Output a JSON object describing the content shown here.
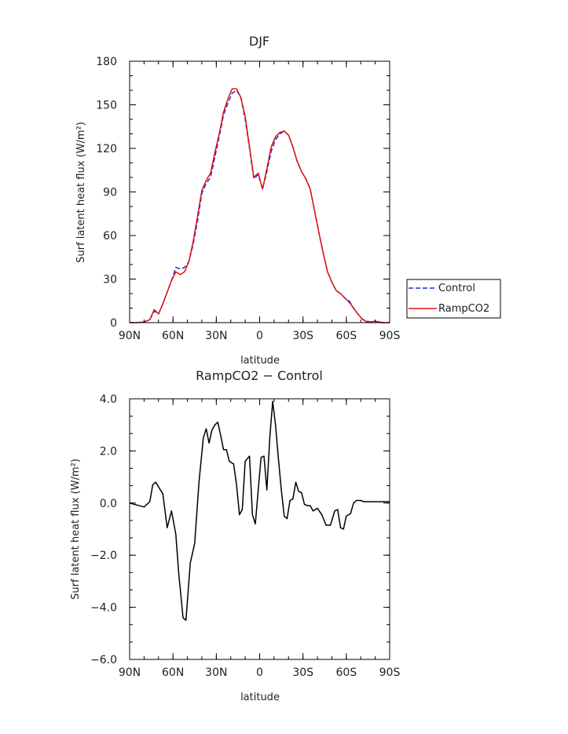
{
  "chart_data": [
    {
      "type": "line",
      "title": "DJF",
      "xlabel": "latitude",
      "ylabel": "Surf latent heat flux (W/m²)",
      "ylim": [
        0,
        180
      ],
      "xlim": [
        90,
        -90
      ],
      "yticks": [
        0,
        30,
        60,
        90,
        120,
        150,
        180
      ],
      "ytick_labels": [
        "0",
        "30",
        "60",
        "90",
        "120",
        "150",
        "180"
      ],
      "xticks": [
        90,
        60,
        30,
        0,
        -30,
        -60,
        -90
      ],
      "xtick_labels": [
        "90N",
        "60N",
        "30N",
        "0",
        "30S",
        "60S",
        "90S"
      ],
      "legend_position": "right",
      "series": [
        {
          "name": "Control",
          "color": "#1f2fd0",
          "dash": "dashed",
          "x": [
            90,
            85,
            80,
            76,
            73,
            70,
            67,
            64,
            61,
            58,
            55,
            52,
            49,
            46,
            43,
            40,
            37,
            34,
            31,
            28,
            25,
            22,
            19,
            16,
            13,
            10,
            7,
            4,
            1,
            -2,
            -5,
            -8,
            -11,
            -14,
            -17,
            -20,
            -23,
            -26,
            -29,
            -32,
            -35,
            -38,
            -41,
            -44,
            -47,
            -50,
            -53,
            -56,
            -59,
            -62,
            -65,
            -68,
            -71,
            -74,
            -77,
            -80,
            -83,
            -86,
            -90
          ],
          "values": [
            0,
            0,
            0.5,
            2,
            8,
            6,
            13,
            21,
            29,
            38,
            37,
            38,
            42,
            54,
            70,
            89,
            96,
            100,
            114,
            128,
            143,
            151,
            158,
            160,
            155,
            140,
            120,
            99,
            102,
            92,
            104,
            118,
            126,
            130,
            132,
            129,
            121,
            111,
            104,
            99,
            92,
            77,
            62,
            48,
            35,
            28,
            22,
            20,
            17,
            15,
            10,
            6,
            2.5,
            1,
            0.5,
            1,
            0,
            0,
            0
          ]
        },
        {
          "name": "RampCO2",
          "color": "#e01010",
          "dash": "solid",
          "x": [
            90,
            85,
            80,
            76,
            73,
            70,
            67,
            64,
            61,
            58,
            55,
            52,
            49,
            46,
            43,
            40,
            37,
            34,
            31,
            28,
            25,
            22,
            19,
            16,
            13,
            10,
            7,
            4,
            1,
            -2,
            -5,
            -8,
            -11,
            -14,
            -17,
            -20,
            -23,
            -26,
            -29,
            -32,
            -35,
            -38,
            -41,
            -44,
            -47,
            -50,
            -53,
            -56,
            -59,
            -62,
            -65,
            -68,
            -71,
            -74,
            -77,
            -80,
            -83,
            -86,
            -90
          ],
          "values": [
            0,
            0,
            0.5,
            2,
            9,
            6,
            13,
            21,
            29,
            35,
            33,
            35,
            42,
            56,
            73,
            91,
            98,
            103,
            117,
            130,
            145,
            154,
            161,
            161,
            155,
            142,
            121,
            100,
            103,
            92,
            106,
            121,
            128,
            131,
            132,
            129,
            121,
            111,
            104,
            99,
            92,
            77,
            62,
            48,
            35,
            28,
            22,
            20,
            17,
            14,
            10,
            6,
            2.5,
            0.5,
            0.5,
            1,
            0.5,
            0,
            0
          ]
        }
      ]
    },
    {
      "type": "line",
      "title": "RampCO2 − Control",
      "xlabel": "latitude",
      "ylabel": "Surf latent heat flux (W/m²)",
      "ylim": [
        -6,
        4
      ],
      "xlim": [
        90,
        -90
      ],
      "yticks": [
        -6,
        -4,
        -2,
        0,
        2,
        4
      ],
      "ytick_labels": [
        "−6.0",
        "−4.0",
        "−2.0",
        "0.0",
        "2.0",
        "4.0"
      ],
      "xticks": [
        90,
        60,
        30,
        0,
        -30,
        -60,
        -90
      ],
      "xtick_labels": [
        "90N",
        "60N",
        "30N",
        "0",
        "30S",
        "60S",
        "90S"
      ],
      "series": [
        {
          "color": "#000000",
          "dash": "solid",
          "x": [
            90,
            80,
            76,
            74,
            72,
            67,
            64,
            61,
            58,
            56,
            53,
            51,
            48,
            45,
            42,
            39,
            37,
            35,
            33,
            31,
            29,
            27,
            25,
            23,
            21,
            18,
            16,
            14,
            12,
            10,
            7,
            5,
            3,
            1,
            -1,
            -3,
            -5,
            -7,
            -9,
            -11,
            -13,
            -15,
            -17,
            -19,
            -21,
            -23,
            -25,
            -27,
            -29,
            -31,
            -33,
            -35,
            -37,
            -40,
            -43,
            -46,
            -49,
            -52,
            -54,
            -56,
            -58,
            -60,
            -63,
            -65,
            -67,
            -70,
            -72,
            -74,
            -76,
            -78,
            -80,
            -83,
            -87,
            -90
          ],
          "values": [
            0,
            -0.15,
            0.05,
            0.7,
            0.8,
            0.35,
            -0.95,
            -0.3,
            -1.2,
            -2.7,
            -4.4,
            -4.5,
            -2.3,
            -1.55,
            0.8,
            2.5,
            2.85,
            2.3,
            2.8,
            3.0,
            3.1,
            2.6,
            2.05,
            2.05,
            1.6,
            1.5,
            0.7,
            -0.45,
            -0.25,
            1.6,
            1.8,
            -0.45,
            -0.8,
            0.5,
            1.75,
            1.8,
            0.5,
            2.5,
            3.9,
            3.0,
            1.7,
            0.5,
            -0.5,
            -0.6,
            0.1,
            0.15,
            0.8,
            0.45,
            0.4,
            -0.05,
            -0.1,
            -0.1,
            -0.3,
            -0.2,
            -0.45,
            -0.85,
            -0.85,
            -0.3,
            -0.25,
            -0.95,
            -1.0,
            -0.5,
            -0.4,
            0,
            0.1,
            0.1,
            0.05,
            0.05,
            0.05,
            0.05,
            0.05,
            0.05,
            0.05,
            0.05
          ]
        }
      ]
    }
  ]
}
